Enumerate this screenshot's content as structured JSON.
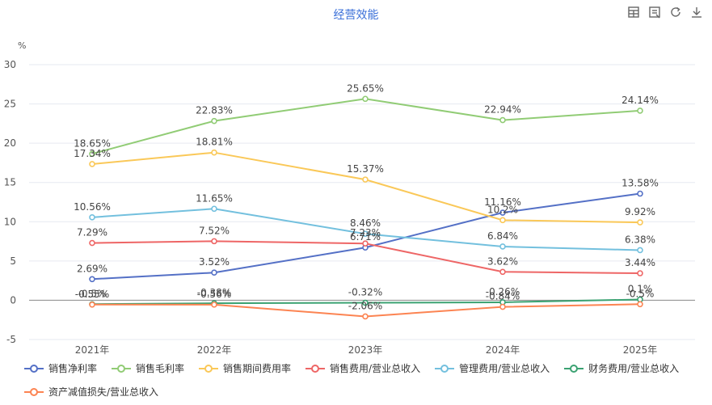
{
  "toolbar": {
    "icons": [
      "table-icon",
      "data-view-icon",
      "refresh-icon",
      "download-icon"
    ]
  },
  "chart_data": {
    "type": "line",
    "title": "经营效能",
    "ylabel": "%",
    "xlabel": "",
    "categories": [
      "2021年",
      "2022年",
      "2023年",
      "2024年",
      "2025年"
    ],
    "ylim": [
      -5,
      30
    ],
    "yticks": [
      -5,
      0,
      5,
      10,
      15,
      20,
      25,
      30
    ],
    "grid": true,
    "legend_position": "bottom",
    "series": [
      {
        "name": "销售净利率",
        "color": "#5470c6",
        "values": [
          2.69,
          3.52,
          6.71,
          11.16,
          13.58
        ],
        "labels": [
          "2.69%",
          "3.52%",
          "6.71%",
          "11.16%",
          "13.58%"
        ]
      },
      {
        "name": "销售毛利率",
        "color": "#91cc75",
        "values": [
          18.65,
          22.83,
          25.65,
          22.94,
          24.14
        ],
        "labels": [
          "18.65%",
          "22.83%",
          "25.65%",
          "22.94%",
          "24.14%"
        ]
      },
      {
        "name": "销售期间费用率",
        "color": "#fac858",
        "values": [
          17.34,
          18.81,
          15.37,
          10.2,
          9.92
        ],
        "labels": [
          "17.34%",
          "18.81%",
          "15.37%",
          "10.2%",
          "9.92%"
        ]
      },
      {
        "name": "销售费用/营业总收入",
        "color": "#ee6666",
        "values": [
          7.29,
          7.52,
          7.23,
          3.62,
          3.44
        ],
        "labels": [
          "7.29%",
          "7.52%",
          "7.23%",
          "3.62%",
          "3.44%"
        ]
      },
      {
        "name": "管理费用/营业总收入",
        "color": "#73c0de",
        "values": [
          10.56,
          11.65,
          8.46,
          6.84,
          6.38
        ],
        "labels": [
          "10.56%",
          "11.65%",
          "8.46%",
          "6.84%",
          "6.38%"
        ]
      },
      {
        "name": "财务费用/营业总收入",
        "color": "#3ba272",
        "values": [
          -0.5,
          -0.38,
          -0.32,
          -0.26,
          0.1
        ],
        "labels": [
          "-0.5%",
          "-0.38%",
          "-0.32%",
          "-0.26%",
          "0.1%"
        ]
      },
      {
        "name": "资产减值损失/营业总收入",
        "color": "#fc8452",
        "values": [
          -0.55,
          -0.56,
          -2.06,
          -0.84,
          -0.5
        ],
        "labels": [
          "-0.55%",
          "-0.56%",
          "-2.06%",
          "-0.84%",
          "-0.5%"
        ]
      }
    ]
  }
}
